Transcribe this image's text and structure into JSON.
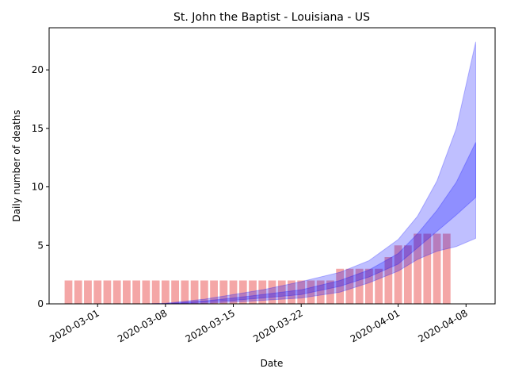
{
  "chart_data": {
    "type": "bar_band",
    "title": "St. John the Baptist - Louisiana - US",
    "xlabel": "Date",
    "ylabel": "Daily number of deaths",
    "x": [
      "2020-02-27",
      "2020-02-28",
      "2020-02-29",
      "2020-03-01",
      "2020-03-02",
      "2020-03-03",
      "2020-03-04",
      "2020-03-05",
      "2020-03-06",
      "2020-03-07",
      "2020-03-08",
      "2020-03-09",
      "2020-03-10",
      "2020-03-11",
      "2020-03-12",
      "2020-03-13",
      "2020-03-14",
      "2020-03-15",
      "2020-03-16",
      "2020-03-17",
      "2020-03-18",
      "2020-03-19",
      "2020-03-20",
      "2020-03-21",
      "2020-03-22",
      "2020-03-23",
      "2020-03-24",
      "2020-03-25",
      "2020-03-26",
      "2020-03-27",
      "2020-03-28",
      "2020-03-29",
      "2020-03-30",
      "2020-03-31",
      "2020-04-01",
      "2020-04-02",
      "2020-04-03",
      "2020-04-04",
      "2020-04-05",
      "2020-04-06"
    ],
    "values": [
      2,
      2,
      2,
      2,
      2,
      2,
      2,
      2,
      2,
      2,
      2,
      2,
      2,
      2,
      2,
      2,
      2,
      2,
      2,
      2,
      2,
      2,
      2,
      2,
      2,
      2,
      2,
      2,
      3,
      3,
      3,
      3,
      3,
      4,
      5,
      5,
      6,
      6,
      6,
      6
    ],
    "color": "#f4a6a6",
    "bands": [
      {
        "color": "#0000ff",
        "x": [
          "2020-03-06",
          "2020-03-08",
          "2020-03-12",
          "2020-03-15",
          "2020-03-18",
          "2020-03-22",
          "2020-03-26",
          "2020-03-29",
          "2020-04-01",
          "2020-04-03",
          "2020-04-05",
          "2020-04-07",
          "2020-04-09"
        ],
        "lower": [
          0,
          0,
          0.05,
          0.15,
          0.3,
          0.5,
          1.0,
          1.8,
          2.8,
          3.8,
          4.5,
          4.9,
          5.6
        ],
        "upper": [
          0,
          0.05,
          0.4,
          0.8,
          1.2,
          1.9,
          2.7,
          3.7,
          5.5,
          7.5,
          10.5,
          15,
          22.4
        ]
      },
      {
        "color": "#0000ff",
        "x": [
          "2020-03-06",
          "2020-03-08",
          "2020-03-12",
          "2020-03-15",
          "2020-03-18",
          "2020-03-22",
          "2020-03-26",
          "2020-03-29",
          "2020-04-01",
          "2020-04-03",
          "2020-04-05",
          "2020-04-07",
          "2020-04-09"
        ],
        "lower": [
          0,
          0,
          0.15,
          0.3,
          0.5,
          0.8,
          1.5,
          2.3,
          3.4,
          4.8,
          6.2,
          7.6,
          9.1
        ],
        "upper": [
          0,
          0.02,
          0.25,
          0.5,
          0.8,
          1.2,
          2.0,
          2.9,
          4.3,
          6.0,
          8.0,
          10.4,
          13.8
        ]
      }
    ],
    "band_opacity": 0.25,
    "xlim": [
      "2020-02-25",
      "2020-04-11"
    ],
    "xticks": [
      "2020-03-01",
      "2020-03-08",
      "2020-03-15",
      "2020-03-22",
      "2020-04-01",
      "2020-04-08"
    ],
    "ylim": [
      0,
      23.6
    ],
    "yticks": [
      0,
      5,
      10,
      15,
      20
    ]
  }
}
